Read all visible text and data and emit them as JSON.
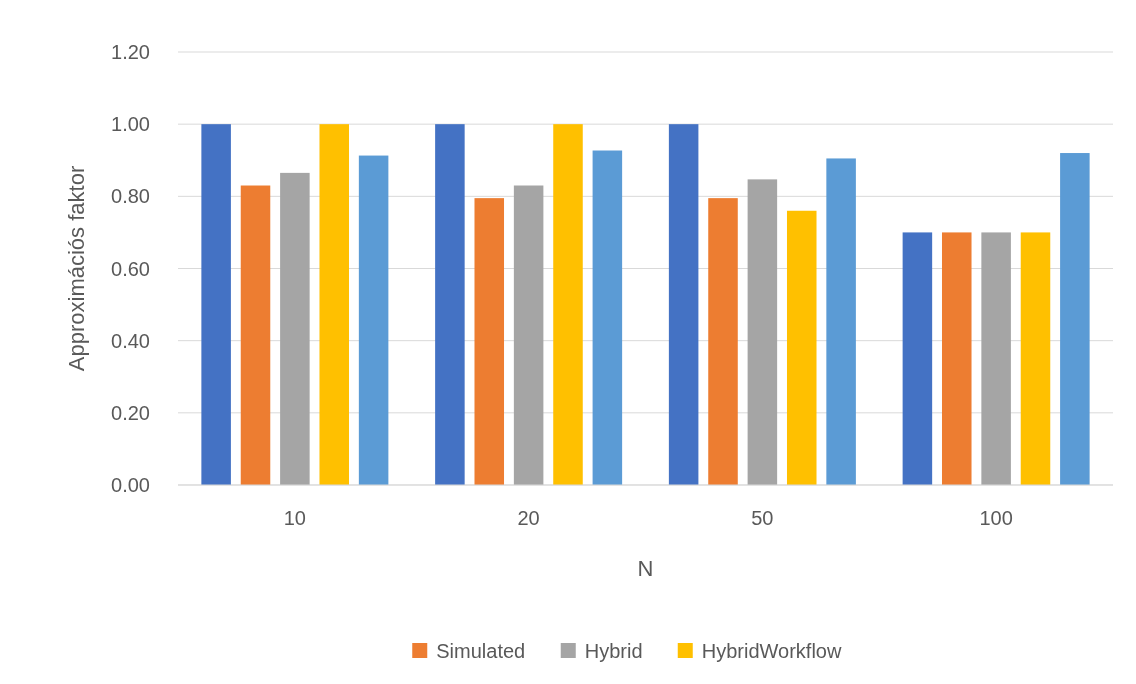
{
  "chart_data": {
    "type": "bar",
    "xlabel": "N",
    "ylabel": "Approximációs faktor",
    "categories": [
      "10",
      "20",
      "50",
      "100"
    ],
    "series": [
      {
        "color": "#4472c4",
        "values": [
          1.0,
          1.0,
          1.0,
          0.7
        ]
      },
      {
        "name": "Simulated",
        "color": "#ed7d31",
        "values": [
          0.83,
          0.795,
          0.795,
          0.7
        ]
      },
      {
        "name": "Hybrid",
        "color": "#a5a5a5",
        "values": [
          0.865,
          0.83,
          0.847,
          0.7
        ]
      },
      {
        "name": "HybridWorkflow",
        "color": "#ffc000",
        "values": [
          1.0,
          1.0,
          0.76,
          0.7
        ]
      },
      {
        "color": "#5b9bd5",
        "values": [
          0.913,
          0.927,
          0.905,
          0.92
        ]
      }
    ],
    "ylim": [
      0,
      1.2
    ],
    "yticks": [
      {
        "value": 0,
        "label": "0.00"
      },
      {
        "value": 0.2,
        "label": "0.20"
      },
      {
        "value": 0.4,
        "label": "0.40"
      },
      {
        "value": 0.6,
        "label": "0.60"
      },
      {
        "value": 0.8,
        "label": "0.80"
      },
      {
        "value": 1.0,
        "label": "1.00"
      },
      {
        "value": 1.2,
        "label": "1.20"
      }
    ],
    "grid": "y",
    "legend": "bottom"
  }
}
